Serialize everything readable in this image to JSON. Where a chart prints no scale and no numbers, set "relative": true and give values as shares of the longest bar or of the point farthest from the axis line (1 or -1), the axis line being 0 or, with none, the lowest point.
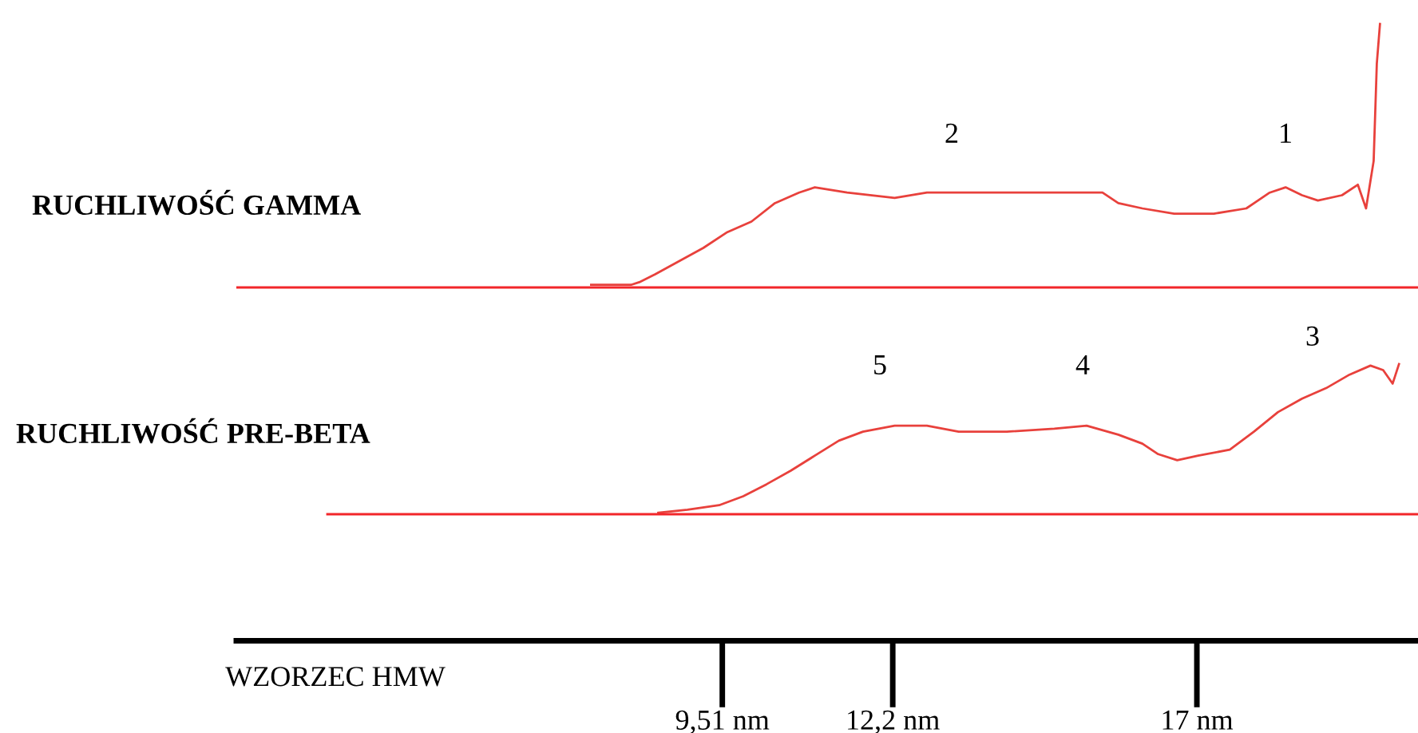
{
  "chart_data": [
    {
      "type": "line",
      "title": "RUCHLIWOŚĆ GAMMA",
      "relative": true,
      "xlim": [
        1.84,
        20.49
      ],
      "tick_labels": false,
      "grid": false,
      "legend": false,
      "marker": "none",
      "line_style": "solid",
      "series": [
        {
          "color": "#e8413c",
          "x": [
            7.44,
            8.07,
            8.2,
            8.45,
            8.83,
            9.21,
            9.59,
            9.97,
            10.34,
            10.72,
            10.97,
            11.48,
            12.23,
            12.74,
            13.75,
            14.5,
            15.51,
            15.76,
            16.14,
            16.64,
            17.27,
            17.78,
            18.15,
            18.4,
            18.66,
            18.91,
            19.29,
            19.54,
            19.67,
            19.79,
            19.84,
            19.89
          ],
          "values": [
            0.01,
            0.01,
            0.02,
            0.05,
            0.1,
            0.15,
            0.21,
            0.25,
            0.32,
            0.36,
            0.38,
            0.36,
            0.34,
            0.36,
            0.36,
            0.36,
            0.36,
            0.32,
            0.3,
            0.28,
            0.28,
            0.3,
            0.36,
            0.38,
            0.35,
            0.33,
            0.35,
            0.39,
            0.3,
            0.48,
            0.85,
            1.0
          ]
        }
      ],
      "annotations": [
        "2",
        "1"
      ]
    },
    {
      "type": "line",
      "title": "RUCHLIWOŚĆ PRE-BETA",
      "relative": true,
      "tick_labels": "x",
      "grid": false,
      "legend": false,
      "marker": "none",
      "line_style": "solid",
      "xlabel": "WZORZEC HMW",
      "xlim": [
        1.84,
        20.49
      ],
      "xticks": [
        {
          "value": 9.51,
          "label": "9,51 nm"
        },
        {
          "value": 12.2,
          "label": "12,2 nm"
        },
        {
          "value": 17,
          "label": "17 nm"
        }
      ],
      "series": [
        {
          "color": "#e8413c",
          "x": [
            8.5,
            8.96,
            9.46,
            9.84,
            10.21,
            10.59,
            10.97,
            11.35,
            11.73,
            12.23,
            12.74,
            13.24,
            14.0,
            14.75,
            15.26,
            15.76,
            16.14,
            16.39,
            16.69,
            17.02,
            17.52,
            17.9,
            18.28,
            18.66,
            19.04,
            19.41,
            19.74,
            19.94,
            20.09,
            20.19
          ],
          "values": [
            0.01,
            0.03,
            0.06,
            0.12,
            0.2,
            0.29,
            0.39,
            0.49,
            0.55,
            0.59,
            0.59,
            0.55,
            0.55,
            0.57,
            0.59,
            0.53,
            0.47,
            0.4,
            0.36,
            0.39,
            0.43,
            0.55,
            0.68,
            0.77,
            0.84,
            0.93,
            0.99,
            0.96,
            0.87,
            1.0
          ]
        }
      ],
      "annotations": [
        "5",
        "4",
        "3"
      ]
    }
  ]
}
